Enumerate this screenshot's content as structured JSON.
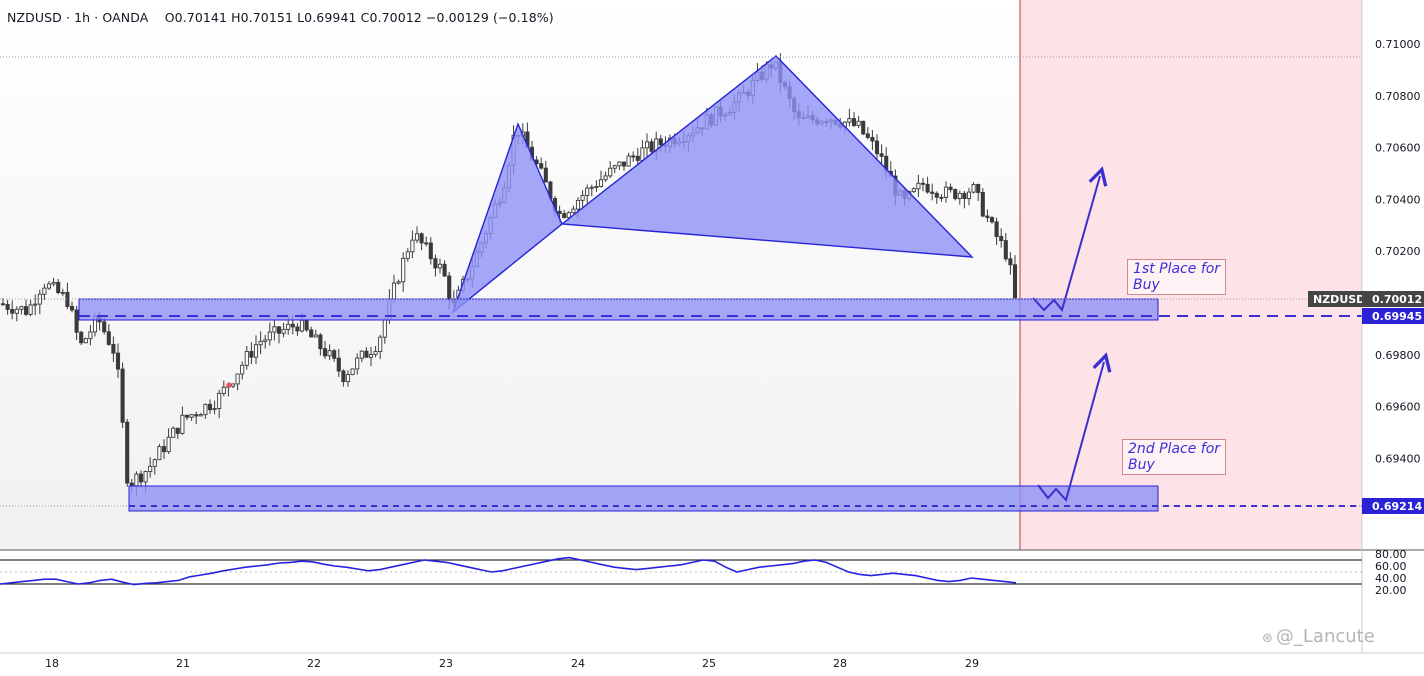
{
  "header": {
    "symbol": "NZDUSD",
    "interval": "1h",
    "broker": "OANDA",
    "open": "O0.70141",
    "high": "H0.70151",
    "low": "L0.69941",
    "close": "C0.70012",
    "change": "−0.00129 (−0.18%)"
  },
  "price_axis": {
    "ticks": [
      "0.71000",
      "0.70800",
      "0.70600",
      "0.70400",
      "0.70200",
      "0.69800",
      "0.69600",
      "0.69400"
    ],
    "tick_values": [
      0.71,
      0.708,
      0.706,
      0.704,
      0.702,
      0.698,
      0.696,
      0.694
    ],
    "symbol_badge": "NZDUSD",
    "current_price_label": "0.70012",
    "current_price": 0.70012,
    "level_1_label": "0.69945",
    "level_1": 0.69945,
    "level_2_label": "0.69214",
    "level_2": 0.69214
  },
  "time_axis": {
    "labels": [
      "18",
      "21",
      "22",
      "23",
      "24",
      "25",
      "28",
      "29"
    ]
  },
  "rsi_axis": {
    "ticks": [
      "80.00",
      "60.00",
      "40.00",
      "20.00"
    ],
    "tick_values": [
      80,
      60,
      40,
      20
    ],
    "upper_band": 70,
    "lower_band": 30
  },
  "annotations": {
    "zone_1_label": "1st Place for\nBuy",
    "zone_2_label": "2nd Place for\nBuy",
    "watermark": "@_Lancute",
    "watermark_icon": "weibo-icon"
  },
  "colors": {
    "bull": "#26a69a",
    "bear": "#ef5350",
    "candle": "#3a3a3a",
    "pattern_fill": "#8f91f7",
    "pattern_stroke": "#2623d6",
    "zone_fill": "#8f91f7",
    "forecast_fill": "#fde3e7",
    "forecast_border": "#b23a48",
    "rsi_line": "#2622e0",
    "dashed_level": "#3b2fd0",
    "arrow": "#3b2fd0"
  },
  "chart_data": {
    "type": "candlestick",
    "symbol": "NZDUSD",
    "timeframe": "1h",
    "ylim": [
      0.6914,
      0.7113
    ],
    "pattern": {
      "type": "harmonic",
      "points": [
        {
          "x": "22 late",
          "y": 0.69975
        },
        {
          "x": "23 mid",
          "y": 0.7069
        },
        {
          "x": "23 late",
          "y": 0.70305
        },
        {
          "x": "25 late",
          "y": 0.70955
        },
        {
          "x": "28 late",
          "y": 0.70175
        }
      ]
    },
    "buy_zones": [
      {
        "name": "1st Place for Buy",
        "low": 0.6993,
        "high": 0.7001,
        "level": 0.69945
      },
      {
        "name": "2nd Place for Buy",
        "low": 0.6917,
        "high": 0.6927,
        "level": 0.69214
      }
    ],
    "rsi": {
      "ylim": [
        17,
        83
      ],
      "values": [
        30,
        32,
        34,
        36,
        38,
        38,
        34,
        30,
        32,
        36,
        38,
        33,
        29,
        31,
        32,
        34,
        36,
        42,
        45,
        48,
        52,
        55,
        58,
        60,
        62,
        65,
        66,
        68,
        67,
        63,
        60,
        58,
        55,
        52,
        54,
        58,
        62,
        66,
        70,
        68,
        66,
        62,
        58,
        54,
        50,
        52,
        56,
        60,
        64,
        68,
        72,
        74,
        70,
        66,
        62,
        58,
        56,
        54,
        56,
        58,
        60,
        62,
        66,
        70,
        68,
        58,
        50,
        54,
        58,
        60,
        62,
        64,
        68,
        70,
        66,
        58,
        50,
        46,
        44,
        46,
        48,
        46,
        44,
        40,
        36,
        34,
        36,
        40,
        38,
        36,
        34,
        32
      ]
    }
  }
}
